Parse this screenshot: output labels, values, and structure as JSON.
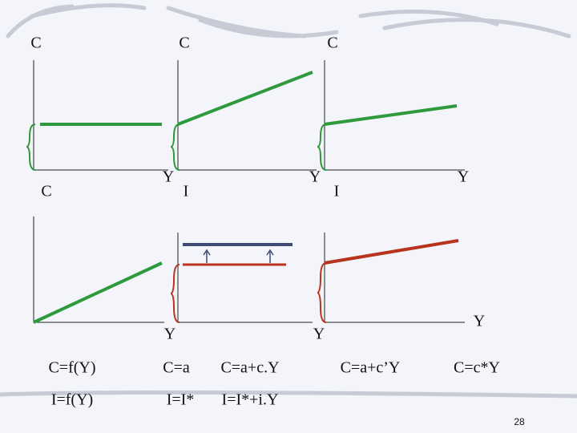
{
  "axis_labels": [
    "C",
    "C",
    "C",
    "Y",
    "Y",
    "Y",
    "C",
    "I",
    "I",
    "Y",
    "Y",
    "Y"
  ],
  "formulas": {
    "consumption": [
      "C=f(Y)",
      "C=a",
      "C=a+c.Y",
      "C=a+c’Y",
      "C=c*Y"
    ],
    "investment": [
      "I=f(Y)",
      "I=I*",
      "I=I*+i.Y"
    ]
  },
  "page_number": "28"
}
